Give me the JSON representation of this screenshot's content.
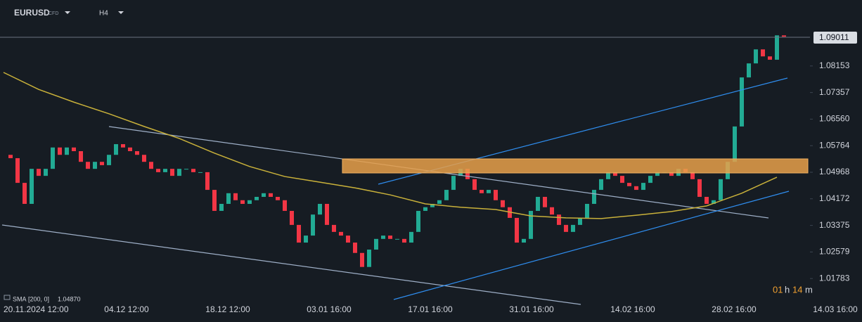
{
  "chart_data": {
    "type": "candlestick",
    "symbol": "EURUSD",
    "market": "CFD",
    "timeframe": "H4",
    "indicator": {
      "name": "SMA",
      "params": "[200, 0]",
      "value_label": "1.04870"
    },
    "countdown": [
      "01",
      "h",
      "14",
      "m"
    ],
    "last_price": 1.09011,
    "x_labels": [
      "20.11.2024 12:00",
      "04.12 12:00",
      "18.12 12:00",
      "03.01 16:00",
      "17.01 16:00",
      "31.01 16:00",
      "14.02 16:00",
      "28.02 16:00",
      "14.03 16:00"
    ],
    "ylim": [
      1.0107,
      1.1013
    ],
    "yticks": [
      1.08153,
      1.07357,
      {
        "value": 1.0656,
        "label": "1.06560"
      },
      1.05764,
      1.04968,
      1.04172,
      1.03375,
      1.02579,
      1.01783
    ],
    "up_color": "#22ab94",
    "down_color": "#f23645",
    "closes": [
      1.0549,
      1.0539,
      1.0465,
      1.0402,
      1.0507,
      1.0486,
      1.0507,
      1.0571,
      1.0549,
      1.0571,
      1.056,
      1.0528,
      1.0507,
      1.0528,
      1.0518,
      1.0549,
      1.0581,
      1.0571,
      1.056,
      1.0549,
      1.0528,
      1.0507,
      1.0497,
      1.0507,
      1.0486,
      1.0507,
      1.0507,
      1.0497,
      1.0497,
      1.0444,
      1.0381,
      1.0402,
      1.0434,
      1.0413,
      1.0402,
      1.0413,
      1.0423,
      1.0434,
      1.0423,
      1.0413,
      1.0381,
      1.0339,
      1.0286,
      1.0307,
      1.037,
      1.0402,
      1.0339,
      1.0318,
      1.0307,
      1.0286,
      1.0255,
      1.0213,
      1.0265,
      1.0297,
      1.0307,
      1.0297,
      1.0297,
      1.0286,
      1.0318,
      1.0381,
      1.0392,
      1.0402,
      1.0413,
      1.0444,
      1.0486,
      1.0507,
      1.0476,
      1.0444,
      1.0434,
      1.0444,
      1.0413,
      1.0392,
      1.036,
      1.0286,
      1.0297,
      1.0381,
      1.0423,
      1.0392,
      1.037,
      1.0339,
      1.0318,
      1.0339,
      1.036,
      1.0402,
      1.0444,
      1.0476,
      1.0497,
      1.0486,
      1.0465,
      1.0455,
      1.0444,
      1.0465,
      1.0486,
      1.0497,
      1.0497,
      1.0486,
      1.0507,
      1.0497,
      1.0476,
      1.0423,
      1.0402,
      1.0413,
      1.0476,
      1.0528,
      1.0634,
      1.0781,
      1.0823,
      1.0865,
      1.0844,
      1.0834,
      1.0907,
      1.0903
    ],
    "sma": {
      "color": "#c9b13a",
      "values": [
        1.0796,
        1.0745,
        1.0707,
        1.0672,
        1.0634,
        1.0598,
        1.0554,
        1.0514,
        1.0484,
        1.0467,
        1.045,
        1.0429,
        1.0402,
        1.0392,
        1.0385,
        1.0366,
        1.036,
        1.0358,
        1.0368,
        1.0379,
        1.0396,
        1.0434,
        1.0482
      ]
    }
  }
}
